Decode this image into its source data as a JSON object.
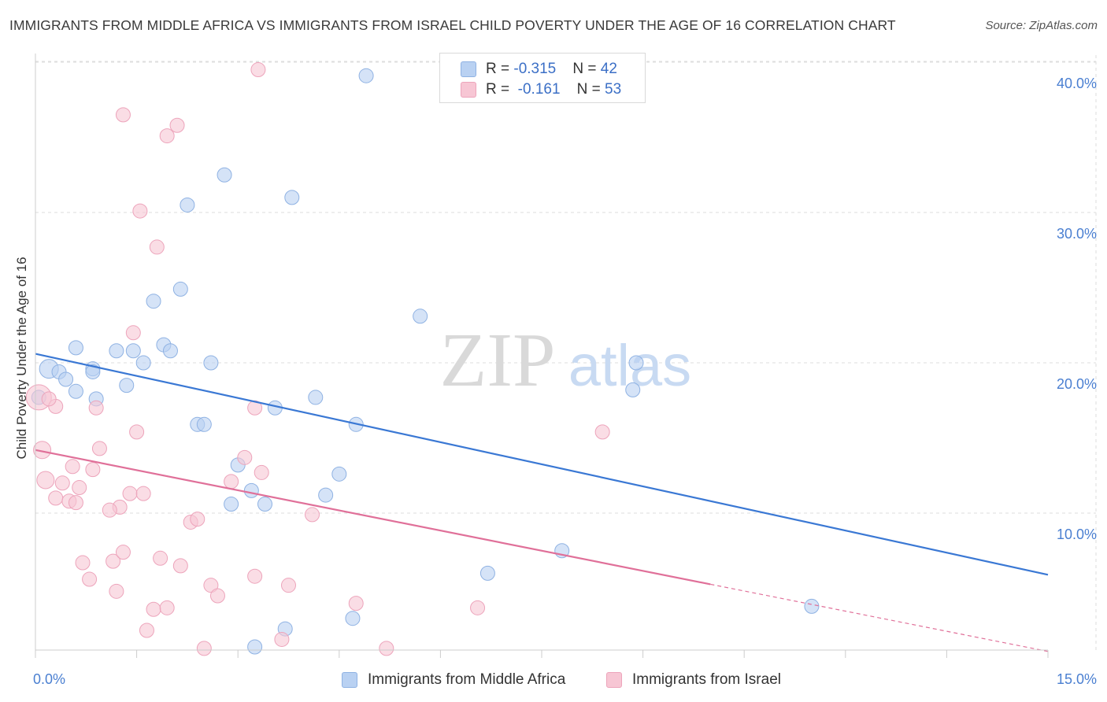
{
  "title": "IMMIGRANTS FROM MIDDLE AFRICA VS IMMIGRANTS FROM ISRAEL CHILD POVERTY UNDER THE AGE OF 16 CORRELATION CHART",
  "source": "Source: ZipAtlas.com",
  "watermark": {
    "zip": "ZIP",
    "atlas": "atlas"
  },
  "legend_top": {
    "rows": [
      {
        "r_label": "R = ",
        "r_value": "-0.315",
        "n_label": "N = ",
        "n_value": "42"
      },
      {
        "r_label": "R = ",
        "r_value": "-0.161",
        "n_label": "N = ",
        "n_value": "53"
      }
    ]
  },
  "legend_bottom": [
    "Immigrants from Middle Africa",
    "Immigrants from Israel"
  ],
  "colors": {
    "blue_fill": "#b9d1f2",
    "blue_stroke": "#8fb2e3",
    "blue_line": "#3a78d4",
    "pink_fill": "#f7c6d4",
    "pink_stroke": "#eda4bb",
    "pink_line": "#e07099",
    "axis_text": "#4a7fd1",
    "grid": "#dddddd"
  },
  "chart_data": {
    "type": "scatter",
    "title": "IMMIGRANTS FROM MIDDLE AFRICA VS IMMIGRANTS FROM ISRAEL CHILD POVERTY UNDER THE AGE OF 16 CORRELATION CHART",
    "xlabel": "",
    "ylabel": "Child Poverty Under the Age of 16",
    "xlim": [
      0,
      15
    ],
    "ylim": [
      0,
      41
    ],
    "x_tick_labels": [
      {
        "value": 0,
        "label": "0.0%"
      },
      {
        "value": 15,
        "label": "15.0%"
      }
    ],
    "y_tick_labels": [
      {
        "value": 10,
        "label": "10.0%"
      },
      {
        "value": 20,
        "label": "20.0%"
      },
      {
        "value": 30,
        "label": "30.0%"
      },
      {
        "value": 40,
        "label": "40.0%"
      }
    ],
    "grid": true,
    "legend_placement": "bottom",
    "series": [
      {
        "name": "Immigrants from Middle Africa",
        "color": "blue",
        "trend": {
          "x": [
            0,
            15
          ],
          "y": [
            20.6,
            5.9
          ]
        },
        "points": [
          [
            0.2,
            19.6,
            12
          ],
          [
            0.35,
            19.4,
            9
          ],
          [
            0.45,
            18.9,
            9
          ],
          [
            0.6,
            18.1,
            9
          ],
          [
            0.85,
            19.6,
            9
          ],
          [
            0.6,
            21.0,
            9
          ],
          [
            0.85,
            19.4,
            9
          ],
          [
            1.2,
            20.8,
            9
          ],
          [
            1.45,
            20.8,
            9
          ],
          [
            1.6,
            20.0,
            9
          ],
          [
            1.9,
            21.2,
            9
          ],
          [
            2.0,
            20.8,
            9
          ],
          [
            0.9,
            17.6,
            9
          ],
          [
            1.35,
            18.5,
            9
          ],
          [
            1.75,
            24.1,
            9
          ],
          [
            2.15,
            24.9,
            9
          ],
          [
            2.25,
            30.5,
            9
          ],
          [
            2.8,
            32.5,
            9
          ],
          [
            3.8,
            31.0,
            9
          ],
          [
            4.9,
            39.1,
            9
          ],
          [
            5.7,
            23.1,
            9
          ],
          [
            2.6,
            20.0,
            9
          ],
          [
            2.4,
            15.9,
            9
          ],
          [
            2.5,
            15.9,
            9
          ],
          [
            3.55,
            17.0,
            9
          ],
          [
            4.15,
            17.7,
            9
          ],
          [
            4.75,
            15.9,
            9
          ],
          [
            3.0,
            13.2,
            9
          ],
          [
            3.2,
            11.5,
            9
          ],
          [
            2.9,
            10.6,
            9
          ],
          [
            3.4,
            10.6,
            9
          ],
          [
            4.5,
            12.6,
            9
          ],
          [
            4.3,
            11.2,
            9
          ],
          [
            8.9,
            20.0,
            9
          ],
          [
            8.85,
            18.2,
            9
          ],
          [
            7.8,
            7.5,
            9
          ],
          [
            6.7,
            6.0,
            9
          ],
          [
            11.5,
            3.8,
            9
          ],
          [
            3.7,
            2.3,
            9
          ],
          [
            4.7,
            3.0,
            9
          ],
          [
            3.25,
            1.1,
            9
          ],
          [
            0.05,
            17.7,
            9
          ]
        ]
      },
      {
        "name": "Immigrants from Israel",
        "color": "pink",
        "trend": {
          "x": [
            0,
            15
          ],
          "y": [
            14.2,
            0.8
          ],
          "solid_until_x": 10.0
        },
        "points": [
          [
            0.05,
            17.7,
            16
          ],
          [
            0.1,
            14.2,
            11
          ],
          [
            0.15,
            12.2,
            11
          ],
          [
            0.3,
            17.1,
            9
          ],
          [
            0.2,
            17.6,
            9
          ],
          [
            0.4,
            12.0,
            9
          ],
          [
            0.3,
            11.0,
            9
          ],
          [
            0.5,
            10.8,
            9
          ],
          [
            0.6,
            10.7,
            9
          ],
          [
            0.65,
            11.7,
            9
          ],
          [
            0.55,
            13.1,
            9
          ],
          [
            0.85,
            12.9,
            9
          ],
          [
            0.95,
            14.3,
            9
          ],
          [
            0.9,
            17.0,
            9
          ],
          [
            1.25,
            10.4,
            9
          ],
          [
            1.1,
            10.2,
            9
          ],
          [
            1.4,
            11.3,
            9
          ],
          [
            1.6,
            11.3,
            9
          ],
          [
            1.5,
            15.4,
            9
          ],
          [
            1.45,
            22.0,
            9
          ],
          [
            1.55,
            30.1,
            9
          ],
          [
            1.8,
            27.7,
            9
          ],
          [
            1.3,
            36.5,
            9
          ],
          [
            1.95,
            35.1,
            9
          ],
          [
            2.1,
            35.8,
            9
          ],
          [
            0.7,
            6.7,
            9
          ],
          [
            0.8,
            5.6,
            9
          ],
          [
            1.15,
            6.8,
            9
          ],
          [
            1.3,
            7.4,
            9
          ],
          [
            1.2,
            4.8,
            9
          ],
          [
            1.85,
            7.0,
            9
          ],
          [
            2.15,
            6.5,
            9
          ],
          [
            2.3,
            9.4,
            9
          ],
          [
            2.4,
            9.6,
            9
          ],
          [
            1.75,
            3.6,
            9
          ],
          [
            1.95,
            3.7,
            9
          ],
          [
            1.65,
            2.2,
            9
          ],
          [
            2.6,
            5.2,
            9
          ],
          [
            2.7,
            4.5,
            9
          ],
          [
            2.5,
            1.0,
            9
          ],
          [
            2.9,
            12.1,
            9
          ],
          [
            3.1,
            13.7,
            9
          ],
          [
            3.35,
            12.7,
            9
          ],
          [
            3.25,
            17.0,
            9
          ],
          [
            3.3,
            39.5,
            9
          ],
          [
            3.25,
            5.8,
            9
          ],
          [
            3.65,
            1.6,
            9
          ],
          [
            3.75,
            5.2,
            9
          ],
          [
            4.1,
            9.9,
            9
          ],
          [
            4.75,
            4.0,
            9
          ],
          [
            5.2,
            1.0,
            9
          ],
          [
            6.55,
            3.7,
            9
          ],
          [
            8.4,
            15.4,
            9
          ]
        ]
      }
    ]
  }
}
